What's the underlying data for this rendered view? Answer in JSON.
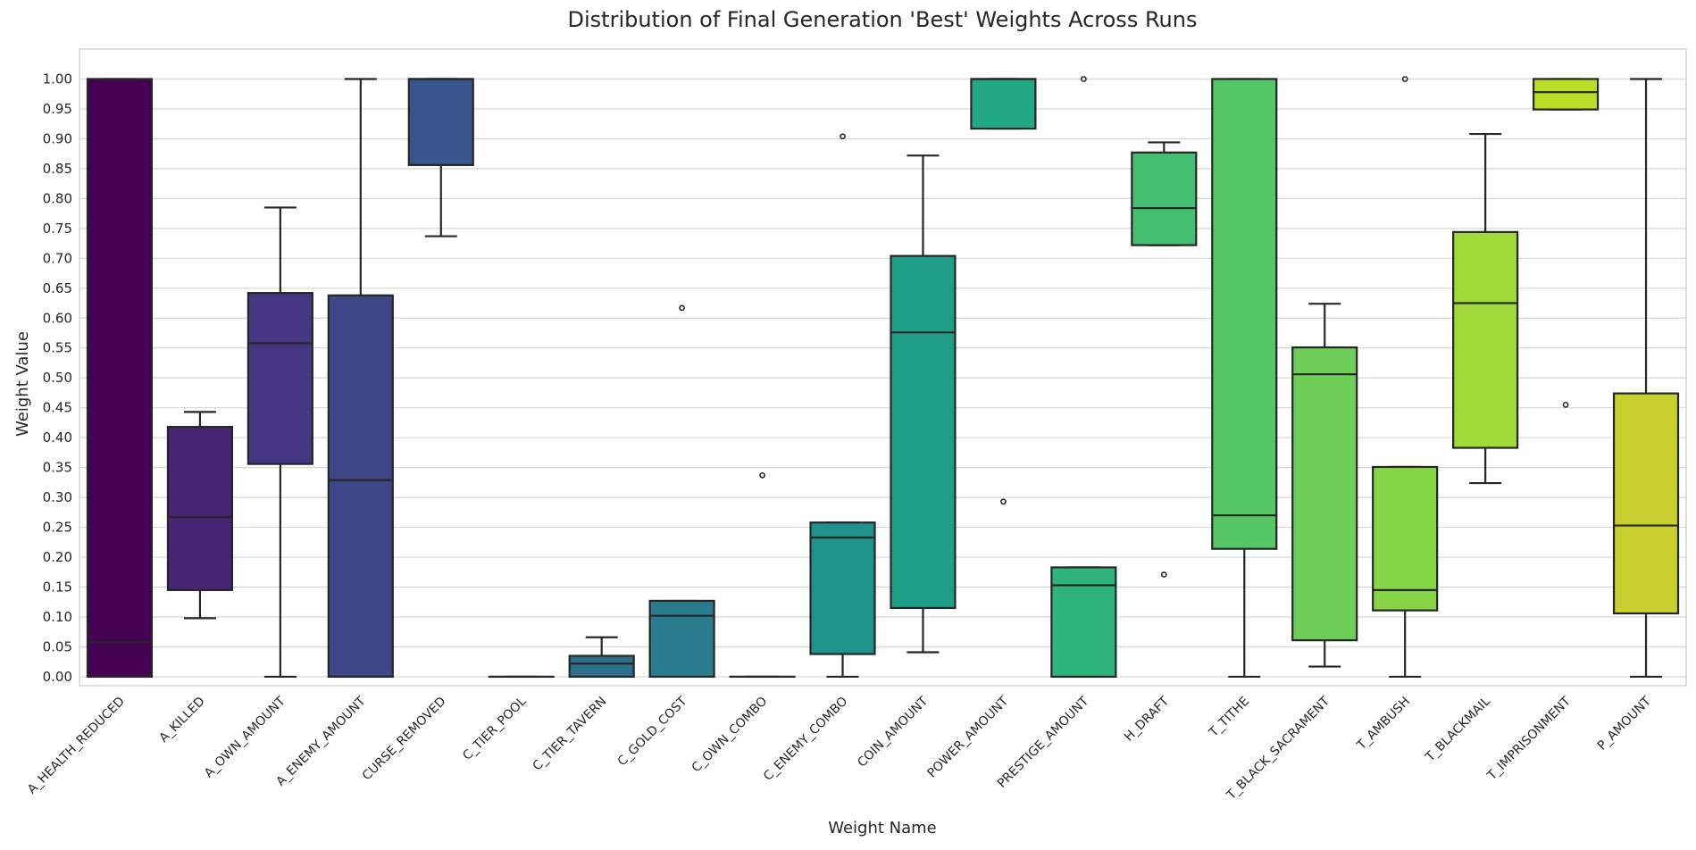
{
  "chart_data": {
    "type": "box",
    "title": "Distribution of Final Generation 'Best' Weights Across Runs",
    "xlabel": "Weight Name",
    "ylabel": "Weight Value",
    "ylim": [
      -0.015,
      1.05
    ],
    "yticks": [
      0.0,
      0.05,
      0.1,
      0.15,
      0.2,
      0.25,
      0.3,
      0.35,
      0.4,
      0.45,
      0.5,
      0.55,
      0.6,
      0.65,
      0.7,
      0.75,
      0.8,
      0.85,
      0.9,
      0.95,
      1.0
    ],
    "ytick_labels": [
      "0.00",
      "0.05",
      "0.10",
      "0.15",
      "0.20",
      "0.25",
      "0.30",
      "0.35",
      "0.40",
      "0.45",
      "0.50",
      "0.55",
      "0.60",
      "0.65",
      "0.70",
      "0.75",
      "0.80",
      "0.85",
      "0.90",
      "0.95",
      "1.00"
    ],
    "grid": true,
    "palette": "viridis",
    "categories": [
      "A_HEALTH_REDUCED",
      "A_KILLED",
      "A_OWN_AMOUNT",
      "A_ENEMY_AMOUNT",
      "CURSE_REMOVED",
      "C_TIER_POOL",
      "C_TIER_TAVERN",
      "C_GOLD_COST",
      "C_OWN_COMBO",
      "C_ENEMY_COMBO",
      "COIN_AMOUNT",
      "POWER_AMOUNT",
      "PRESTIGE_AMOUNT",
      "H_DRAFT",
      "T_TITHE",
      "T_BLACK_SACRAMENT",
      "T_AMBUSH",
      "T_BLACKMAIL",
      "T_IMPRISONMENT",
      "P_AMOUNT"
    ],
    "series": [
      {
        "whisker_low": 0.0,
        "q1": 0.0,
        "median": 0.058,
        "q3": 1.0,
        "whisker_high": 1.0,
        "outliers": [],
        "color": "#440154"
      },
      {
        "whisker_low": 0.098,
        "q1": 0.145,
        "median": 0.267,
        "q3": 0.418,
        "whisker_high": 0.443,
        "outliers": [],
        "color": "#482475"
      },
      {
        "whisker_low": 0.0,
        "q1": 0.356,
        "median": 0.558,
        "q3": 0.642,
        "whisker_high": 0.785,
        "outliers": [],
        "color": "#453781"
      },
      {
        "whisker_low": 0.0,
        "q1": 0.0,
        "median": 0.329,
        "q3": 0.638,
        "whisker_high": 1.0,
        "outliers": [],
        "color": "#3f4788"
      },
      {
        "whisker_low": 0.737,
        "q1": 0.856,
        "median": 1.0,
        "q3": 1.0,
        "whisker_high": 1.0,
        "outliers": [],
        "color": "#39568c"
      },
      {
        "whisker_low": 0.0,
        "q1": 0.0,
        "median": 0.0,
        "q3": 0.0,
        "whisker_high": 0.0,
        "outliers": [],
        "color": "#32658e"
      },
      {
        "whisker_low": 0.0,
        "q1": 0.0,
        "median": 0.022,
        "q3": 0.035,
        "whisker_high": 0.066,
        "outliers": [],
        "color": "#2d708e"
      },
      {
        "whisker_low": 0.0,
        "q1": 0.0,
        "median": 0.102,
        "q3": 0.127,
        "whisker_high": 0.127,
        "outliers": [
          0.617
        ],
        "color": "#287c8e"
      },
      {
        "whisker_low": 0.0,
        "q1": 0.0,
        "median": 0.0,
        "q3": 0.0,
        "whisker_high": 0.0,
        "outliers": [
          0.337
        ],
        "color": "#238a8d"
      },
      {
        "whisker_low": 0.0,
        "q1": 0.038,
        "median": 0.233,
        "q3": 0.258,
        "whisker_high": 0.258,
        "outliers": [
          0.904
        ],
        "color": "#20928c"
      },
      {
        "whisker_low": 0.041,
        "q1": 0.115,
        "median": 0.576,
        "q3": 0.704,
        "whisker_high": 0.872,
        "outliers": [],
        "color": "#1f9f88"
      },
      {
        "whisker_low": 0.917,
        "q1": 0.917,
        "median": 1.0,
        "q3": 1.0,
        "whisker_high": 1.0,
        "outliers": [
          0.293
        ],
        "color": "#22a884"
      },
      {
        "whisker_low": 0.0,
        "q1": 0.0,
        "median": 0.153,
        "q3": 0.183,
        "whisker_high": 0.183,
        "outliers": [
          1.0
        ],
        "color": "#2fb47c"
      },
      {
        "whisker_low": 0.722,
        "q1": 0.722,
        "median": 0.784,
        "q3": 0.877,
        "whisker_high": 0.894,
        "outliers": [
          0.171
        ],
        "color": "#44bf70"
      },
      {
        "whisker_low": 0.0,
        "q1": 0.214,
        "median": 0.27,
        "q3": 1.0,
        "whisker_high": 1.0,
        "outliers": [],
        "color": "#56c667"
      },
      {
        "whisker_low": 0.017,
        "q1": 0.061,
        "median": 0.506,
        "q3": 0.551,
        "whisker_high": 0.624,
        "outliers": [],
        "color": "#6ece58"
      },
      {
        "whisker_low": 0.0,
        "q1": 0.111,
        "median": 0.145,
        "q3": 0.351,
        "whisker_high": 0.351,
        "outliers": [
          1.0
        ],
        "color": "#86d549"
      },
      {
        "whisker_low": 0.324,
        "q1": 0.383,
        "median": 0.625,
        "q3": 0.744,
        "whisker_high": 0.908,
        "outliers": [],
        "color": "#9fda3a"
      },
      {
        "whisker_low": 0.949,
        "q1": 0.949,
        "median": 0.978,
        "q3": 1.0,
        "whisker_high": 1.0,
        "outliers": [
          0.455
        ],
        "color": "#bade28"
      },
      {
        "whisker_low": 0.0,
        "q1": 0.106,
        "median": 0.253,
        "q3": 0.474,
        "whisker_high": 1.0,
        "outliers": [],
        "color": "#c8d02f"
      }
    ]
  }
}
